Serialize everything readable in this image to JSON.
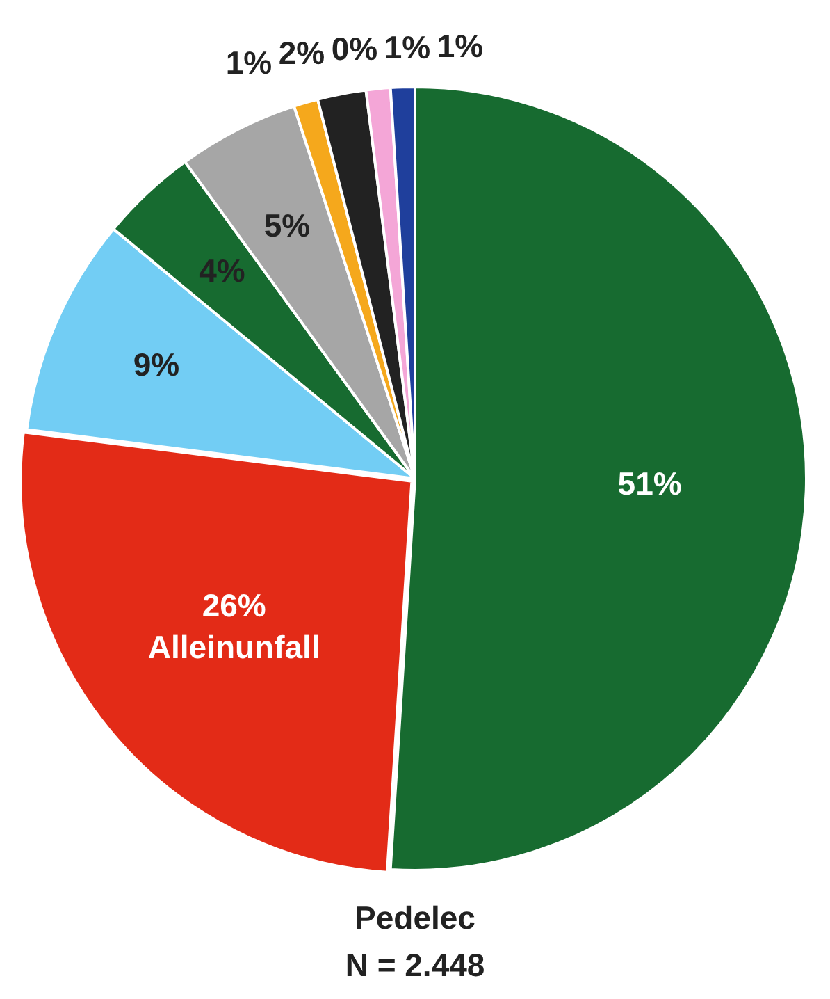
{
  "chart_data": {
    "type": "pie",
    "title": "Pedelec",
    "subtitle": "N = 2.448",
    "categories": [
      null,
      "Alleinunfall",
      null,
      null,
      null,
      null,
      null,
      null,
      null,
      null
    ],
    "values": [
      51,
      26,
      9,
      4,
      5,
      1,
      2,
      0,
      1,
      1
    ],
    "value_labels": [
      "51%",
      "26%",
      "9%",
      "4%",
      "5%",
      "1%",
      "2%",
      "0%",
      "1%",
      "1%"
    ],
    "colors": [
      "#176b30",
      "#e32b17",
      "#72cdf4",
      "#176b30",
      "#a6a6a6",
      "#f5a81c",
      "#222222",
      "#7f7f7f",
      "#f4a6d7",
      "#1f3f9c"
    ],
    "legend": false
  }
}
